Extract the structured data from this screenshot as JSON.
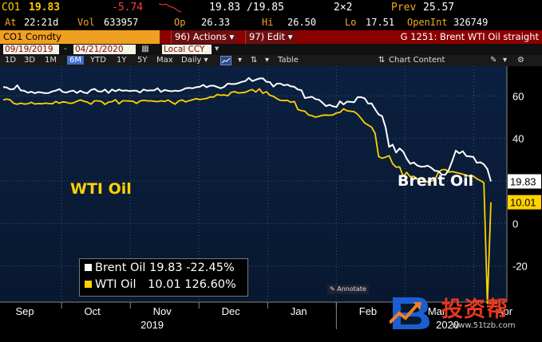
{
  "quote": {
    "ticker": "CO1",
    "last": "19.83",
    "change": "-5.74",
    "bid_ask": "19.83 /19.85",
    "size": "2×2",
    "prev_label": "Prev",
    "prev": "25.57",
    "at_label": "At",
    "time": "22:21d",
    "vol_label": "Vol",
    "vol": "633957",
    "op_label": "Op",
    "op": "26.33",
    "hi_label": "Hi",
    "hi": "26.50",
    "lo_label": "Lo",
    "lo": "17.51",
    "oi_label": "OpenInt",
    "oi": "326749"
  },
  "command": {
    "ticker": "CO1 Comdty",
    "actions": "96) Actions ▾",
    "edit": "97) Edit ▾",
    "title": "G 1251: Brent WTI Oil straight"
  },
  "range": {
    "start": "09/19/2019",
    "end": "04/21/2020",
    "sep": "-",
    "currency": "Local CCY"
  },
  "toolbar": {
    "periods": [
      "1D",
      "3D",
      "1M",
      "6M",
      "YTD",
      "1Y",
      "5Y",
      "Max"
    ],
    "active_period": "6M",
    "interval": "Daily ▾",
    "table": "Table",
    "chart_content": "Chart Content"
  },
  "annotations": {
    "wti": "WTI Oil",
    "brent": "Brent Oil",
    "annotate_button": "Annotate"
  },
  "legend": {
    "brent_label": "Brent Oil",
    "brent_value": "19.83",
    "brent_change": "-22.45%",
    "wti_label": "WTI Oil",
    "wti_value": "10.01",
    "wti_change": "126.60%"
  },
  "watermark": {
    "brand": "投资帮",
    "url": "www.51tzb.com"
  },
  "colors": {
    "brent": "#ffffff",
    "wti": "#ffd200",
    "background": "#0b2040",
    "accent": "#f0a020"
  },
  "chart_data": {
    "type": "line",
    "x_ticks": [
      "Sep",
      "Oct",
      "Nov",
      "Dec",
      "Jan",
      "Feb",
      "Mar",
      "Apr"
    ],
    "year_labels": [
      "2019",
      "2020"
    ],
    "y_ticks": [
      60,
      40,
      20,
      0,
      -20
    ],
    "ylim": [
      -37,
      74
    ],
    "last_labels": [
      "19.83",
      "10.01"
    ],
    "series": [
      {
        "name": "Brent Oil",
        "color": "#ffffff",
        "values": [
          64.2,
          64.0,
          63.1,
          63.2,
          65.0,
          62.6,
          62.4,
          61.5,
          62.0,
          61.3,
          61.8,
          61.6,
          61.3,
          61.4,
          62.1,
          62.5,
          63.2,
          61.9,
          61.6,
          62.2,
          62.5,
          61.4,
          62.4,
          61.6,
          61.3,
          62.8,
          63.3,
          62.2,
          62.0,
          63.0,
          61.4,
          63.0,
          62.2,
          63.0,
          62.4,
          62.6,
          62.3,
          62.5,
          62.5,
          61.6,
          63.0,
          62.5,
          62.6,
          62.6,
          63.6,
          61.9,
          62.8,
          62.4,
          62.2,
          62.5,
          62.3,
          62.8,
          63.6,
          63.8,
          63.6,
          64.1,
          64.3,
          65.2,
          64.1,
          64.8,
          64.8,
          64.2,
          63.6,
          64.3,
          65.8,
          65.6,
          65.6,
          66.0,
          66.6,
          67.0,
          68.5,
          67.0,
          67.6,
          68.2,
          68.3,
          66.7,
          66.5,
          64.4,
          65.8,
          65.8,
          65.0,
          65.3,
          64.5,
          64.3,
          63.0,
          62.7,
          59.0,
          59.3,
          59.6,
          58.5,
          58.2,
          56.8,
          55.2,
          55.8,
          55.1,
          54.8,
          57.5,
          56.0,
          57.3,
          57.2,
          57.0,
          59.4,
          59.4,
          58.9,
          56.4,
          56.5,
          53.8,
          51.3,
          50.5,
          45.2,
          36.0,
          37.1,
          33.4,
          35.3,
          33.8,
          30.5,
          28.1,
          28.7,
          27.3,
          26.7,
          26.8,
          27.2,
          26.2,
          24.8,
          24.6,
          23.0,
          22.9,
          25.3,
          29.5,
          34.3,
          33.0,
          34.0,
          31.7,
          31.5,
          31.3,
          28.5,
          28.8,
          27.8,
          25.6,
          19.8
        ]
      },
      {
        "name": "WTI Oil",
        "color": "#ffd200",
        "values": [
          58.1,
          58.5,
          58.1,
          56.5,
          56.1,
          56.6,
          56.2,
          56.3,
          57.0,
          56.2,
          56.4,
          56.3,
          56.6,
          56.4,
          56.3,
          57.4,
          56.6,
          57.2,
          57.0,
          56.5,
          56.7,
          57.5,
          58.1,
          57.5,
          57.1,
          56.1,
          57.7,
          57.7,
          57.4,
          56.0,
          57.1,
          57.3,
          58.2,
          56.3,
          57.7,
          57.7,
          57.6,
          57.5,
          56.5,
          57.6,
          58.0,
          57.7,
          57.7,
          57.5,
          57.3,
          57.7,
          57.4,
          58.1,
          57.0,
          56.1,
          57.6,
          58.1,
          57.2,
          57.8,
          58.2,
          58.7,
          58.3,
          58.6,
          58.8,
          59.5,
          59.5,
          60.7,
          60.3,
          60.5,
          60.1,
          61.7,
          62.0,
          61.4,
          61.5,
          61.7,
          62.5,
          63.0,
          61.8,
          63.3,
          61.2,
          62.0,
          60.3,
          59.8,
          58.7,
          57.9,
          57.8,
          57.9,
          57.0,
          57.4,
          53.6,
          53.1,
          52.8,
          51.1,
          50.7,
          50.0,
          50.4,
          50.9,
          51.0,
          50.9,
          51.1,
          52.0,
          52.3,
          53.9,
          53.0,
          52.8,
          52.6,
          51.4,
          49.4,
          47.3,
          46.3,
          45.3,
          42.4,
          31.5,
          30.7,
          31.2,
          31.9,
          28.1,
          26.5,
          26.6,
          22.1,
          24.0,
          22.0,
          22.2,
          20.9,
          21.5,
          20.0,
          19.6,
          20.0,
          20.4,
          24.0,
          25.3,
          25.4,
          24.2,
          24.4,
          24.0,
          23.6,
          23.2,
          22.7,
          22.2,
          22.3,
          21.0,
          20.2,
          19.2,
          -37.6,
          10.0
        ]
      }
    ]
  }
}
